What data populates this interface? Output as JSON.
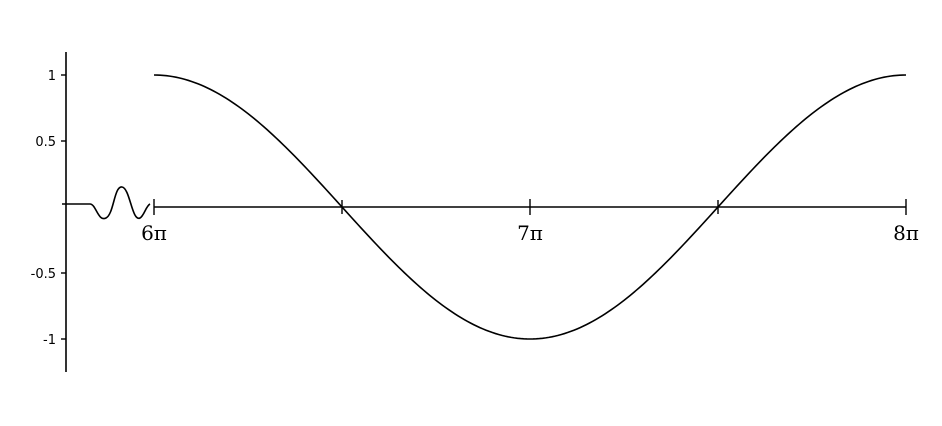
{
  "chart_data": {
    "type": "line",
    "x_domain": [
      "6π",
      "8π"
    ],
    "xlim": [
      6,
      8
    ],
    "x_unit": "π",
    "ylim": [
      -1,
      1
    ],
    "grid": false,
    "legend": "none",
    "axis_break": true,
    "x_ticks": [
      {
        "value": 6,
        "label": "6π"
      },
      {
        "value": 7,
        "label": "7π"
      },
      {
        "value": 8,
        "label": "8π"
      }
    ],
    "y_ticks": [
      {
        "value": 1,
        "label": "1"
      },
      {
        "value": 0.5,
        "label": "0.5"
      },
      {
        "value": -0.5,
        "label": "-0.5"
      },
      {
        "value": -1,
        "label": "-1"
      }
    ],
    "series": [
      {
        "function": "cos",
        "x": [
          6,
          6.25,
          6.5,
          6.75,
          7,
          7.25,
          7.5,
          7.75,
          8
        ],
        "y": [
          1,
          0.707,
          0,
          -0.707,
          -1,
          -0.707,
          0,
          0.707,
          1
        ]
      }
    ],
    "colors": {
      "line": "#000000",
      "axis": "#000000",
      "background": "#ffffff"
    }
  }
}
